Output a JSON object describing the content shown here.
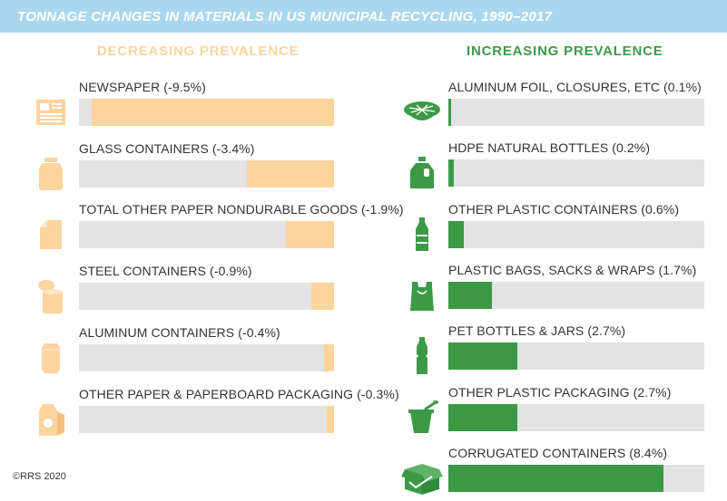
{
  "title": "TONNAGE CHANGES IN MATERIALS IN US MUNICIPAL RECYCLING, 1990–2017",
  "decreasing_heading": "DECREASING PREVALENCE",
  "increasing_heading": "INCREASING PREVALENCE",
  "copyright": "©RRS 2020",
  "colors": {
    "decreasing": "#fbd49e",
    "increasing": "#3c9a47",
    "track": "#e3e3e3",
    "title_bar": "#a9d7ef"
  },
  "chart_data": {
    "type": "bar",
    "title": "TONNAGE CHANGES IN MATERIALS IN US MUNICIPAL RECYCLING, 1990–2017",
    "unit": "%",
    "decreasing": [
      {
        "label": "NEWSPAPER (-9.5%)",
        "category": "NEWSPAPER",
        "value": -9.5,
        "icon": "newspaper-icon"
      },
      {
        "label": "GLASS CONTAINERS (-3.4%)",
        "category": "GLASS CONTAINERS",
        "value": -3.4,
        "icon": "glass-jar-icon"
      },
      {
        "label": "TOTAL OTHER PAPER NONDURABLE GOODS (-1.9%)",
        "category": "TOTAL OTHER PAPER NONDURABLE GOODS",
        "value": -1.9,
        "icon": "paper-sheet-icon"
      },
      {
        "label": "STEEL CONTAINERS (-0.9%)",
        "category": "STEEL CONTAINERS",
        "value": -0.9,
        "icon": "steel-can-icon"
      },
      {
        "label": "ALUMINUM CONTAINERS (-0.4%)",
        "category": "ALUMINUM CONTAINERS",
        "value": -0.4,
        "icon": "aluminum-can-icon"
      },
      {
        "label": "OTHER PAPER & PAPERBOARD PACKAGING (-0.3%)",
        "category": "OTHER PAPER & PAPERBOARD PACKAGING",
        "value": -0.3,
        "icon": "paper-bag-icon"
      }
    ],
    "increasing": [
      {
        "label": "ALUMINUM FOIL, CLOSURES, ETC (0.1%)",
        "category": "ALUMINUM FOIL, CLOSURES, ETC",
        "value": 0.1,
        "icon": "foil-tray-icon"
      },
      {
        "label": "HDPE NATURAL BOTTLES (0.2%)",
        "category": "HDPE NATURAL BOTTLES",
        "value": 0.2,
        "icon": "milk-jug-icon"
      },
      {
        "label": "OTHER PLASTIC CONTAINERS (0.6%)",
        "category": "OTHER PLASTIC CONTAINERS",
        "value": 0.6,
        "icon": "plastic-bottle-icon"
      },
      {
        "label": "PLASTIC BAGS, SACKS & WRAPS (1.7%)",
        "category": "PLASTIC BAGS, SACKS & WRAPS",
        "value": 1.7,
        "icon": "plastic-bag-icon"
      },
      {
        "label": "PET BOTTLES & JARS (2.7%)",
        "category": "PET BOTTLES & JARS",
        "value": 2.7,
        "icon": "pet-bottle-icon"
      },
      {
        "label": "OTHER PLASTIC PACKAGING (2.7%)",
        "category": "OTHER PLASTIC PACKAGING",
        "value": 2.7,
        "icon": "yogurt-cup-icon"
      },
      {
        "label": "CORRUGATED CONTAINERS (8.4%)",
        "category": "CORRUGATED CONTAINERS",
        "value": 8.4,
        "icon": "corrugated-box-icon"
      }
    ],
    "xlim": [
      0,
      10
    ]
  }
}
